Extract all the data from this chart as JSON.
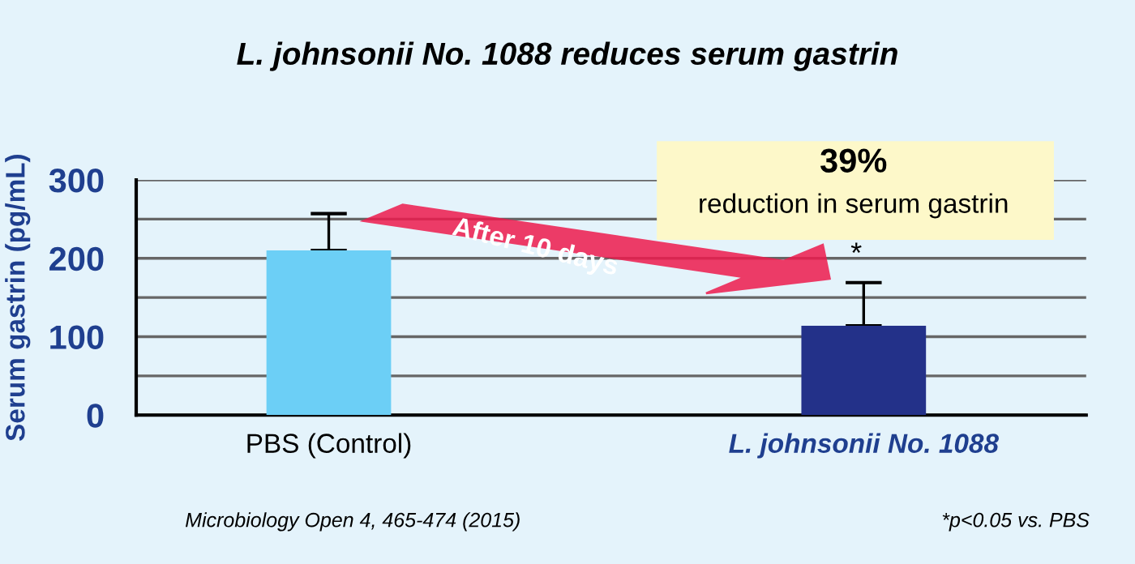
{
  "chart_data": {
    "type": "bar",
    "title": "L. johnsonii No. 1088 reduces serum gastrin",
    "ylabel": "Serum gastrin (pg/mL)",
    "categories": [
      "PBS (Control)",
      "L. johnsonii No. 1088"
    ],
    "values": [
      210,
      114
    ],
    "colors": [
      "#6ccff6",
      "#233189"
    ],
    "errors": [
      [
        210,
        257
      ],
      [
        114,
        169
      ]
    ],
    "ylim": [
      0,
      300
    ],
    "yticks": [
      0,
      {
        "value": 50,
        "label": null
      },
      100,
      {
        "value": 150,
        "label": null
      },
      200,
      {
        "value": 250,
        "label": null
      },
      300
    ],
    "grid": "y",
    "annotations": [
      "*",
      "39%",
      "reduction in serum gastrin",
      "After 10 days",
      "Microbiology Open 4, 465-474 (2015)",
      "*p<0.05 vs. PBS"
    ]
  }
}
